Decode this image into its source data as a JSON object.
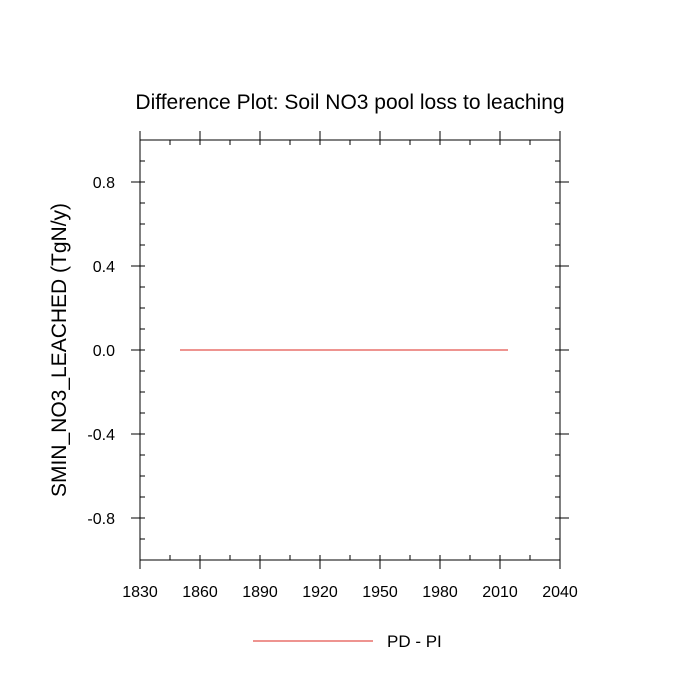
{
  "chart_data": {
    "type": "line",
    "title": "Difference Plot: Soil NO3 pool loss to leaching",
    "xlabel": "",
    "ylabel": "SMIN_NO3_LEACHED  (TgN/y)",
    "xlim": [
      1830,
      2040
    ],
    "ylim": [
      -1,
      1
    ],
    "x_ticks": [
      1830,
      1860,
      1890,
      1920,
      1950,
      1980,
      2010,
      2040
    ],
    "x_tick_labels": [
      "1830",
      "1860",
      "1890",
      "1920",
      "1950",
      "1980",
      "2010",
      "2040"
    ],
    "y_ticks": [
      -0.8,
      -0.4,
      0.0,
      0.4,
      0.8
    ],
    "y_tick_labels": [
      "-0.8",
      "-0.4",
      "0.0",
      "0.4",
      "0.8"
    ],
    "x_minor_step": 15,
    "y_minor_step": 0.1,
    "grid": false,
    "legend_position": "bottom-center",
    "series": [
      {
        "name": "PD - PI",
        "color": "#e8706b",
        "x": [
          1850,
          2014
        ],
        "y": [
          0.0,
          0.0
        ]
      }
    ]
  }
}
